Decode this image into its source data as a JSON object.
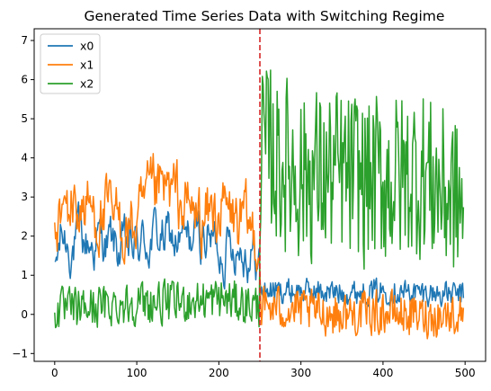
{
  "chart_data": {
    "type": "line",
    "title": "Generated Time Series Data with Switching Regime",
    "xlabel": "",
    "ylabel": "",
    "xlim": [
      -25,
      525
    ],
    "ylim": [
      -1.2,
      7.3
    ],
    "xticks": [
      0,
      100,
      200,
      300,
      400,
      500
    ],
    "yticks": [
      -1,
      0,
      1,
      2,
      3,
      4,
      5,
      6,
      7
    ],
    "grid": false,
    "legend_position": "top-left",
    "regime_switch": {
      "x": 250,
      "color": "#d62728",
      "style": "dashed"
    },
    "series": [
      {
        "name": "x0",
        "color": "#1f77b4",
        "anchors": [
          [
            0,
            0.9
          ],
          [
            8,
            2.0
          ],
          [
            20,
            1.8
          ],
          [
            40,
            1.8
          ],
          [
            60,
            1.9
          ],
          [
            80,
            1.6
          ],
          [
            100,
            1.7
          ],
          [
            120,
            2.0
          ],
          [
            140,
            1.9
          ],
          [
            160,
            1.8
          ],
          [
            180,
            2.1
          ],
          [
            200,
            1.7
          ],
          [
            220,
            1.9
          ],
          [
            240,
            1.6
          ],
          [
            249,
            1.3
          ],
          [
            251,
            0.6
          ],
          [
            300,
            0.6
          ],
          [
            350,
            0.55
          ],
          [
            400,
            0.6
          ],
          [
            450,
            0.55
          ],
          [
            495,
            0.5
          ]
        ]
      },
      {
        "name": "x1",
        "color": "#ff7f0e",
        "anchors": [
          [
            0,
            2.2
          ],
          [
            20,
            2.8
          ],
          [
            40,
            2.7
          ],
          [
            60,
            2.5
          ],
          [
            80,
            2.3
          ],
          [
            100,
            2.2
          ],
          [
            120,
            3.0
          ],
          [
            140,
            3.1
          ],
          [
            160,
            2.7
          ],
          [
            180,
            2.4
          ],
          [
            200,
            2.7
          ],
          [
            220,
            2.4
          ],
          [
            240,
            2.1
          ],
          [
            249,
            2.0
          ],
          [
            251,
            0.2
          ],
          [
            300,
            0.1
          ],
          [
            350,
            0.0
          ],
          [
            400,
            0.05
          ],
          [
            450,
            -0.05
          ],
          [
            495,
            0.0
          ]
        ]
      },
      {
        "name": "x2",
        "color": "#2ca02c",
        "anchors": [
          [
            0,
            0.1
          ],
          [
            50,
            0.2
          ],
          [
            100,
            0.3
          ],
          [
            150,
            0.3
          ],
          [
            200,
            0.4
          ],
          [
            249,
            0.2
          ],
          [
            251,
            4.2
          ],
          [
            300,
            3.6
          ],
          [
            350,
            3.5
          ],
          [
            400,
            3.4
          ],
          [
            450,
            3.6
          ],
          [
            495,
            2.8
          ]
        ]
      }
    ]
  }
}
